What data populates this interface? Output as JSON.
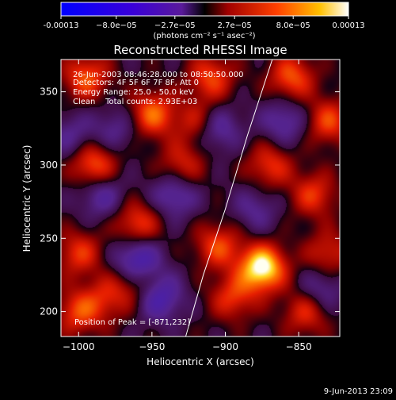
{
  "chart_data": {
    "type": "heatmap",
    "title": "Reconstructed RHESSI Image",
    "xlabel": "Heliocentric X (arcsec)",
    "ylabel": "Heliocentric Y (arcsec)",
    "xlim": [
      -1012,
      -822
    ],
    "ylim": [
      183,
      372
    ],
    "xticks": [
      -1000,
      -950,
      -900,
      -850
    ],
    "xtick_labels": [
      "−1000",
      "−950",
      "−900",
      "−850"
    ],
    "yticks": [
      200,
      250,
      300,
      350
    ],
    "ytick_labels": [
      "200",
      "250",
      "300",
      "350"
    ],
    "colorbar": {
      "range": [
        -0.00013,
        0.00013
      ],
      "ticks": [
        -0.00013,
        -8e-05,
        -2.7e-05,
        2.7e-05,
        8e-05,
        0.00013
      ],
      "tick_labels": [
        "-0.00013",
        "−8.0e−05",
        "−2.7e−05",
        "2.7e−05",
        "8.0e−05",
        "0.00013"
      ],
      "units": "(photons cm⁻² s⁻¹ asec⁻²)"
    },
    "annotations": [
      "26-Jun-2003 08:46:28.000 to 08:50:50.000",
      "Detectors: 4F 5F 6F 7F 8F, Att 0",
      "Energy Range: 25.0 - 50.0 keV",
      "Clean    Total counts: 2.93E+03"
    ],
    "peak_label": "Position of Peak = [-871,232]",
    "peak": [
      -871,
      232
    ],
    "limb_curve": [
      [
        -927,
        183
      ],
      [
        -915,
        225
      ],
      [
        -900,
        270
      ],
      [
        -885,
        320
      ],
      [
        -868,
        372
      ]
    ],
    "blobs": [
      [
        -875,
        230,
        1.0
      ],
      [
        -990,
        300,
        0.6
      ],
      [
        -995,
        360,
        0.55
      ],
      [
        -950,
        335,
        0.6
      ],
      [
        -910,
        360,
        0.5
      ],
      [
        -855,
        360,
        0.55
      ],
      [
        -830,
        330,
        0.5
      ],
      [
        -870,
        300,
        0.45
      ],
      [
        -960,
        260,
        0.5
      ],
      [
        -1000,
        240,
        0.45
      ],
      [
        -905,
        245,
        0.5
      ],
      [
        -840,
        280,
        0.45
      ],
      [
        -830,
        240,
        0.4
      ],
      [
        -1000,
        200,
        0.5
      ],
      [
        -960,
        220,
        0.35
      ],
      [
        -895,
        210,
        0.45
      ],
      [
        -845,
        200,
        0.45
      ],
      [
        -930,
        300,
        0.4
      ],
      [
        -980,
        210,
        0.35
      ],
      [
        -920,
        330,
        0.35
      ],
      [
        -960,
        235,
        -0.65
      ],
      [
        -935,
        280,
        -0.45
      ],
      [
        -945,
        210,
        -0.55
      ],
      [
        -905,
        325,
        -0.4
      ],
      [
        -985,
        280,
        -0.4
      ],
      [
        -860,
        330,
        -0.4
      ],
      [
        -835,
        215,
        -0.35
      ],
      [
        -880,
        270,
        -0.3
      ],
      [
        -975,
        325,
        -0.3
      ],
      [
        -1005,
        320,
        -0.3
      ]
    ],
    "footer": "9-Jun-2013 23:09"
  }
}
